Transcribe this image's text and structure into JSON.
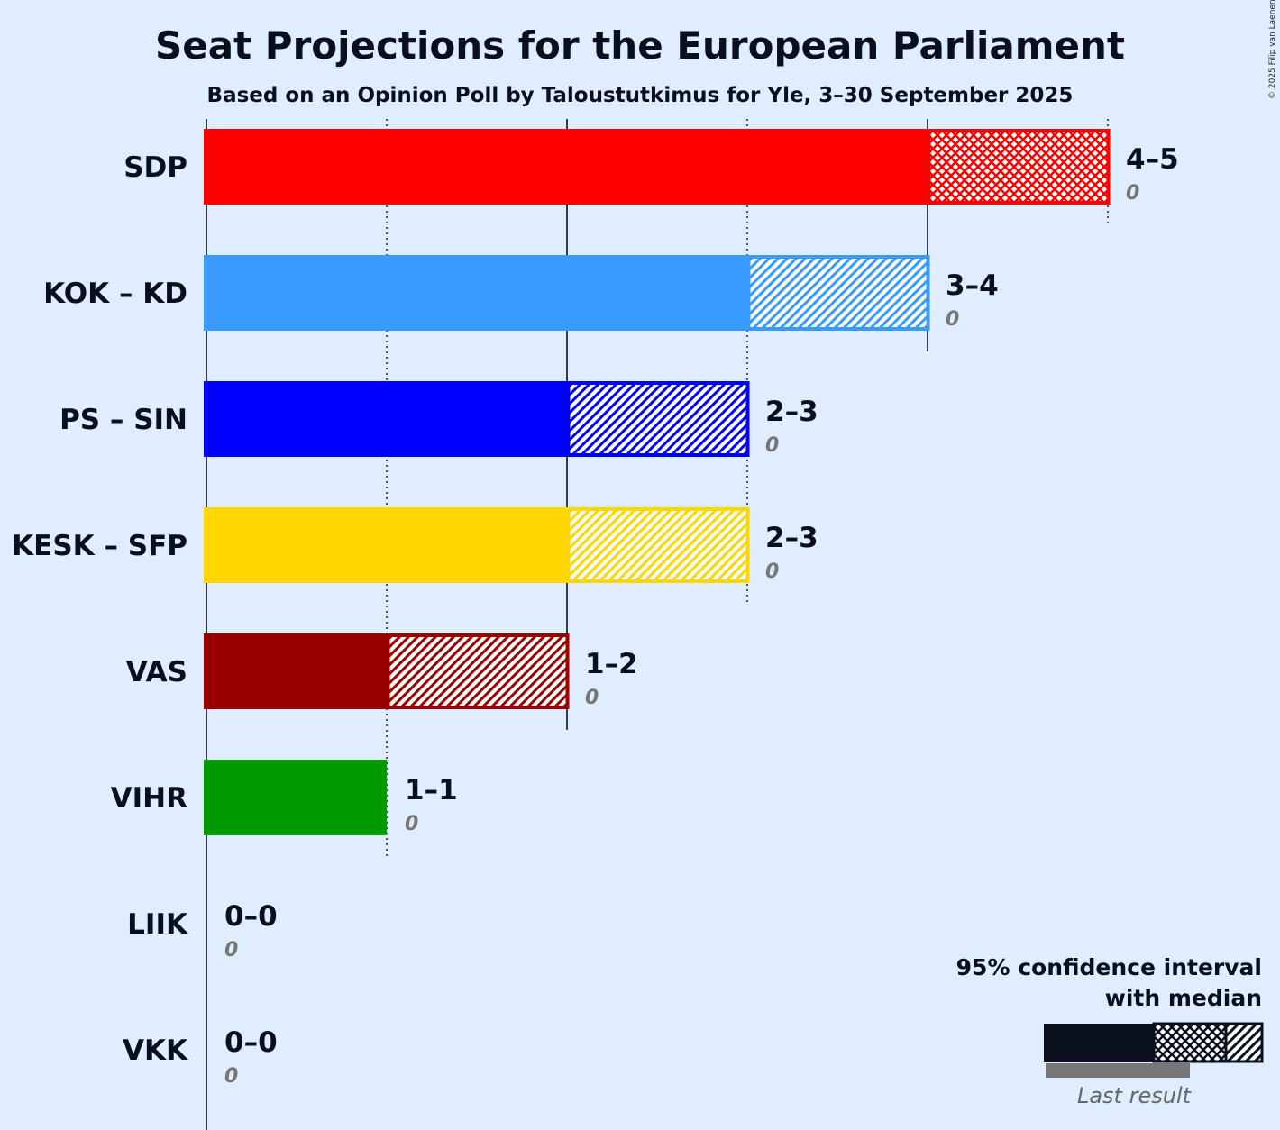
{
  "title": "Seat Projections for the European Parliament",
  "subtitle": "Based on an Opinion Poll by Taloustutkimus for Yle, 3–30 September 2025",
  "copyright": "© 2025 Filip van Laenen",
  "legend": {
    "line1": "95% confidence interval",
    "line2": "with median",
    "last_result": "Last result"
  },
  "chart_data": {
    "type": "bar",
    "orientation": "horizontal",
    "title": "Seat Projections for the European Parliament",
    "subtitle": "Based on an Opinion Poll by Taloustutkimus for Yle, 3–30 September 2025",
    "xlim": [
      0,
      5
    ],
    "grid": "vertical gridlines at each seat, dotted at odd seats",
    "parties": [
      {
        "name": "SDP",
        "low": 4,
        "median": 4,
        "high": 5,
        "label": "4–5",
        "last_result": "0",
        "color": "#ff0000"
      },
      {
        "name": "KOK – KD",
        "low": 3,
        "median": 3,
        "high": 4,
        "label": "3–4",
        "last_result": "0",
        "color": "#3a9bff"
      },
      {
        "name": "PS – SIN",
        "low": 2,
        "median": 2,
        "high": 3,
        "label": "2–3",
        "last_result": "0",
        "color": "#0000ff"
      },
      {
        "name": "KESK – SFP",
        "low": 2,
        "median": 2,
        "high": 3,
        "label": "2–3",
        "last_result": "0",
        "color": "#ffd700"
      },
      {
        "name": "VAS",
        "low": 1,
        "median": 1,
        "high": 2,
        "label": "1–2",
        "last_result": "0",
        "color": "#990000"
      },
      {
        "name": "VIHR",
        "low": 1,
        "median": 1,
        "high": 1,
        "label": "1–1",
        "last_result": "0",
        "color": "#009900"
      },
      {
        "name": "LIIK",
        "low": 0,
        "median": 0,
        "high": 0,
        "label": "0–0",
        "last_result": "0",
        "color": "#888888"
      },
      {
        "name": "VKK",
        "low": 0,
        "median": 0,
        "high": 0,
        "label": "0–0",
        "last_result": "0",
        "color": "#888888"
      }
    ]
  }
}
